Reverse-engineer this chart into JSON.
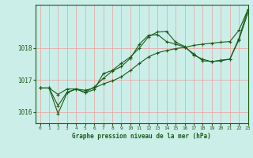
{
  "title": "Graphe pression niveau de la mer (hPa)",
  "bg_color": "#cceee8",
  "line_color": "#1a5c1a",
  "grid_color": "#e8a0a0",
  "xlim": [
    -0.5,
    23
  ],
  "ylim": [
    1015.65,
    1019.35
  ],
  "yticks": [
    1016,
    1017,
    1018
  ],
  "xticks": [
    0,
    1,
    2,
    3,
    4,
    5,
    6,
    7,
    8,
    9,
    10,
    11,
    12,
    13,
    14,
    15,
    16,
    17,
    18,
    19,
    20,
    21,
    22,
    23
  ],
  "series1_x": [
    0,
    1,
    2,
    3,
    4,
    5,
    6,
    7,
    8,
    9,
    10,
    11,
    12,
    13,
    14,
    15,
    16,
    17,
    18,
    19,
    20,
    21,
    22,
    23
  ],
  "series1_y": [
    1016.75,
    1016.75,
    1016.55,
    1016.72,
    1016.72,
    1016.68,
    1016.75,
    1016.88,
    1016.97,
    1017.1,
    1017.3,
    1017.52,
    1017.72,
    1017.85,
    1017.92,
    1017.98,
    1018.02,
    1018.08,
    1018.12,
    1018.15,
    1018.18,
    1018.2,
    1018.55,
    1019.2
  ],
  "series2_x": [
    0,
    1,
    2,
    3,
    4,
    5,
    6,
    7,
    8,
    9,
    10,
    11,
    12,
    13,
    14,
    15,
    16,
    17,
    18,
    19,
    20,
    21,
    22,
    23
  ],
  "series2_y": [
    1016.75,
    1016.75,
    1015.95,
    1016.6,
    1016.72,
    1016.6,
    1016.7,
    1017.2,
    1017.3,
    1017.52,
    1017.72,
    1018.0,
    1018.35,
    1018.5,
    1018.52,
    1018.18,
    1018.05,
    1017.78,
    1017.65,
    1017.57,
    1017.62,
    1017.65,
    1018.3,
    1019.2
  ],
  "series3_x": [
    0,
    1,
    2,
    3,
    4,
    5,
    6,
    7,
    8,
    9,
    10,
    11,
    12,
    13,
    14,
    15,
    16,
    17,
    18,
    19,
    20,
    21,
    22,
    23
  ],
  "series3_y": [
    1016.75,
    1016.75,
    1016.2,
    1016.62,
    1016.72,
    1016.62,
    1016.78,
    1017.05,
    1017.28,
    1017.42,
    1017.68,
    1018.12,
    1018.4,
    1018.42,
    1018.2,
    1018.12,
    1018.03,
    1017.82,
    1017.6,
    1017.58,
    1017.6,
    1017.65,
    1018.25,
    1019.1
  ]
}
